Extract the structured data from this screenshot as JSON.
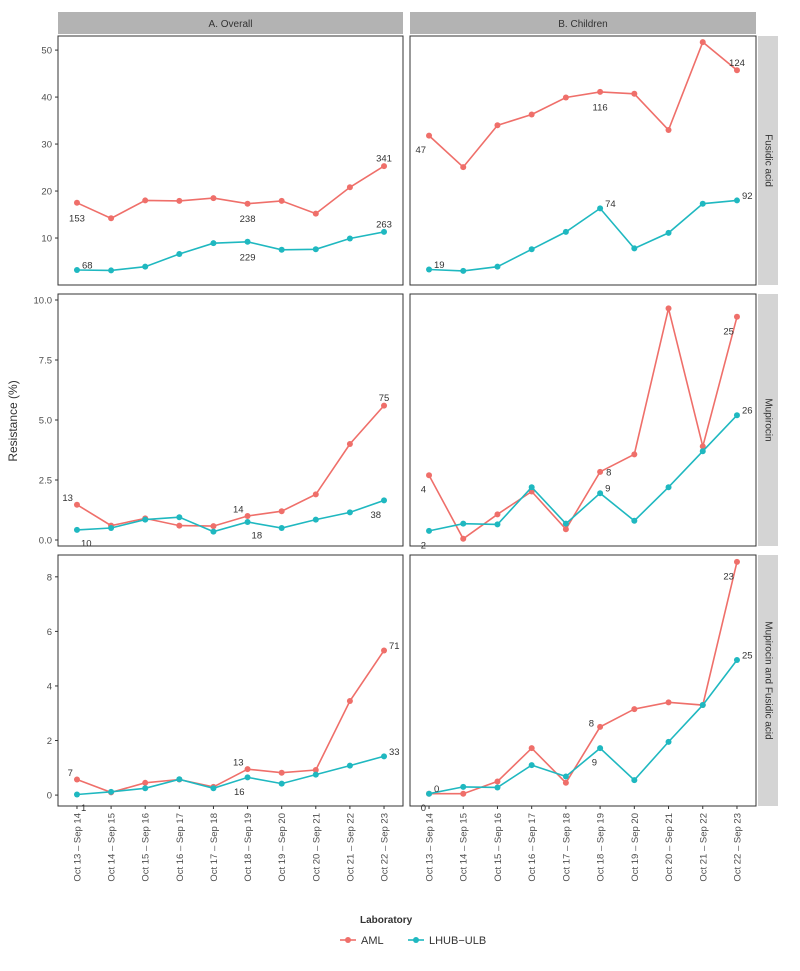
{
  "y_axis_label": "Resistance (%)",
  "legend": {
    "title": "Laboratory",
    "items": [
      {
        "name": "AML",
        "color": "#EF6F6A"
      },
      {
        "name": "LHUB−ULB",
        "color": "#1FB8C0"
      }
    ]
  },
  "colors": {
    "aml": "#EF6F6A",
    "lhub": "#1FB8C0",
    "strip": "#B3B3B3",
    "strip_side": "#D4D4D4"
  },
  "chart_data": {
    "type": "line",
    "x_categories": [
      "Oct 13 – Sep 14",
      "Oct 14 – Sep 15",
      "Oct 15 – Sep 16",
      "Oct 16 – Sep 17",
      "Oct 17 – Sep 18",
      "Oct 18 – Sep 19",
      "Oct 19 – Sep 20",
      "Oct 20 – Sep 21",
      "Oct 21 – Sep 22",
      "Oct 22 – Sep 23"
    ],
    "columns": [
      "A. Overall",
      "B. Children"
    ],
    "rows": [
      {
        "label": "Fusidic acid",
        "ylim": [
          0,
          53
        ],
        "ticks": [
          {
            "value": 10,
            "label": "10"
          },
          {
            "value": 20,
            "label": "20"
          },
          {
            "value": 30,
            "label": "30"
          },
          {
            "value": 40,
            "label": "40"
          },
          {
            "value": 50,
            "label": "50"
          }
        ],
        "panels": [
          {
            "series": [
              {
                "name": "AML",
                "values": [
                  17.5,
                  14.2,
                  18.0,
                  17.9,
                  18.5,
                  17.3,
                  17.9,
                  15.2,
                  20.8,
                  25.3
                ]
              },
              {
                "name": "LHUB−ULB",
                "values": [
                  3.2,
                  3.1,
                  3.9,
                  6.6,
                  8.9,
                  9.2,
                  7.5,
                  7.6,
                  9.9,
                  11.3
                ]
              }
            ],
            "annotations": [
              {
                "series": "AML",
                "index": 0,
                "text": "153",
                "pos": "below"
              },
              {
                "series": "AML",
                "index": 5,
                "text": "238",
                "pos": "below"
              },
              {
                "series": "AML",
                "index": 9,
                "text": "341",
                "pos": "above"
              },
              {
                "series": "LHUB−ULB",
                "index": 0,
                "text": "68",
                "pos": "above-right"
              },
              {
                "series": "LHUB−ULB",
                "index": 5,
                "text": "229",
                "pos": "below"
              },
              {
                "series": "LHUB−ULB",
                "index": 9,
                "text": "263",
                "pos": "above"
              }
            ]
          },
          {
            "series": [
              {
                "name": "AML",
                "values": [
                  31.8,
                  25.1,
                  34.0,
                  36.3,
                  39.9,
                  41.1,
                  40.7,
                  33.0,
                  51.7,
                  45.7
                ]
              },
              {
                "name": "LHUB−ULB",
                "values": [
                  3.3,
                  3.0,
                  3.9,
                  7.6,
                  11.3,
                  16.3,
                  7.8,
                  11.1,
                  17.3,
                  18.0
                ]
              }
            ],
            "annotations": [
              {
                "series": "AML",
                "index": 0,
                "text": "47",
                "pos": "below-left"
              },
              {
                "series": "AML",
                "index": 5,
                "text": "116",
                "pos": "below"
              },
              {
                "series": "AML",
                "index": 9,
                "text": "124",
                "pos": "above"
              },
              {
                "series": "LHUB−ULB",
                "index": 0,
                "text": "19",
                "pos": "above-right"
              },
              {
                "series": "LHUB−ULB",
                "index": 5,
                "text": "74",
                "pos": "above-right"
              },
              {
                "series": "LHUB−ULB",
                "index": 9,
                "text": "92",
                "pos": "above-right"
              }
            ]
          }
        ]
      },
      {
        "label": "Mupirocin",
        "ylim": [
          -0.25,
          10.25
        ],
        "ticks": [
          {
            "value": 0,
            "label": "0.0"
          },
          {
            "value": 2.5,
            "label": "2.5"
          },
          {
            "value": 5,
            "label": "5.0"
          },
          {
            "value": 7.5,
            "label": "7.5"
          },
          {
            "value": 10,
            "label": "10.0"
          }
        ],
        "panels": [
          {
            "series": [
              {
                "name": "AML",
                "values": [
                  1.47,
                  0.6,
                  0.9,
                  0.6,
                  0.58,
                  1.0,
                  1.2,
                  1.9,
                  4.0,
                  5.6
                ]
              },
              {
                "name": "LHUB−ULB",
                "values": [
                  0.42,
                  0.5,
                  0.85,
                  0.95,
                  0.35,
                  0.75,
                  0.5,
                  0.85,
                  1.15,
                  1.65
                ]
              }
            ],
            "annotations": [
              {
                "series": "AML",
                "index": 0,
                "text": "13",
                "pos": "above-left"
              },
              {
                "series": "AML",
                "index": 5,
                "text": "14",
                "pos": "above-left"
              },
              {
                "series": "AML",
                "index": 9,
                "text": "75",
                "pos": "above"
              },
              {
                "series": "LHUB−ULB",
                "index": 0,
                "text": "10",
                "pos": "below-right"
              },
              {
                "series": "LHUB−ULB",
                "index": 5,
                "text": "18",
                "pos": "below-right"
              },
              {
                "series": "LHUB−ULB",
                "index": 9,
                "text": "38",
                "pos": "below-left"
              }
            ]
          },
          {
            "series": [
              {
                "name": "AML",
                "values": [
                  2.7,
                  0.05,
                  1.07,
                  2.02,
                  0.45,
                  2.84,
                  3.57,
                  9.65,
                  3.9,
                  9.3
                ]
              },
              {
                "name": "LHUB−ULB",
                "values": [
                  0.38,
                  0.68,
                  0.65,
                  2.2,
                  0.68,
                  1.95,
                  0.8,
                  2.2,
                  3.7,
                  5.2
                ]
              }
            ],
            "annotations": [
              {
                "series": "AML",
                "index": 0,
                "text": "4",
                "pos": "below-left"
              },
              {
                "series": "AML",
                "index": 5,
                "text": "8",
                "pos": "right"
              },
              {
                "series": "AML",
                "index": 9,
                "text": "25",
                "pos": "below-left"
              },
              {
                "series": "LHUB−ULB",
                "index": 0,
                "text": "2",
                "pos": "below-left"
              },
              {
                "series": "LHUB−ULB",
                "index": 5,
                "text": "9",
                "pos": "above-right"
              },
              {
                "series": "LHUB−ULB",
                "index": 9,
                "text": "26",
                "pos": "above-right"
              }
            ]
          }
        ]
      },
      {
        "label": "Mupirocin and Fusidic acid",
        "ylim": [
          -0.4,
          8.8
        ],
        "ticks": [
          {
            "value": 0,
            "label": "0"
          },
          {
            "value": 2,
            "label": "2"
          },
          {
            "value": 4,
            "label": "4"
          },
          {
            "value": 6,
            "label": "6"
          },
          {
            "value": 8,
            "label": "8"
          }
        ],
        "panels": [
          {
            "series": [
              {
                "name": "AML",
                "values": [
                  0.57,
                  0.1,
                  0.45,
                  0.57,
                  0.3,
                  0.95,
                  0.82,
                  0.92,
                  3.45,
                  5.3
                ]
              },
              {
                "name": "LHUB−ULB",
                "values": [
                  0.02,
                  0.12,
                  0.25,
                  0.58,
                  0.25,
                  0.65,
                  0.42,
                  0.75,
                  1.08,
                  1.42
                ]
              }
            ],
            "annotations": [
              {
                "series": "AML",
                "index": 0,
                "text": "7",
                "pos": "above-left"
              },
              {
                "series": "AML",
                "index": 5,
                "text": "13",
                "pos": "above-left"
              },
              {
                "series": "AML",
                "index": 9,
                "text": "71",
                "pos": "above-right"
              },
              {
                "series": "LHUB−ULB",
                "index": 0,
                "text": "1",
                "pos": "below-right"
              },
              {
                "series": "LHUB−ULB",
                "index": 5,
                "text": "16",
                "pos": "below-left"
              },
              {
                "series": "LHUB−ULB",
                "index": 9,
                "text": "33",
                "pos": "above-right"
              }
            ]
          },
          {
            "series": [
              {
                "name": "AML",
                "values": [
                  0.05,
                  0.05,
                  0.5,
                  1.72,
                  0.45,
                  2.5,
                  3.15,
                  3.4,
                  3.3,
                  8.55
                ]
              },
              {
                "name": "LHUB−ULB",
                "values": [
                  0.05,
                  0.3,
                  0.28,
                  1.1,
                  0.68,
                  1.72,
                  0.55,
                  1.95,
                  3.3,
                  4.95
                ]
              }
            ],
            "annotations": [
              {
                "series": "AML",
                "index": 0,
                "text": "0",
                "pos": "below-left"
              },
              {
                "series": "AML",
                "index": 5,
                "text": "8",
                "pos": "left"
              },
              {
                "series": "AML",
                "index": 9,
                "text": "23",
                "pos": "below-left"
              },
              {
                "series": "LHUB−ULB",
                "index": 0,
                "text": "0",
                "pos": "above-right"
              },
              {
                "series": "LHUB−ULB",
                "index": 5,
                "text": "9",
                "pos": "below-left"
              },
              {
                "series": "LHUB−ULB",
                "index": 9,
                "text": "25",
                "pos": "above-right"
              }
            ]
          }
        ]
      }
    ]
  }
}
